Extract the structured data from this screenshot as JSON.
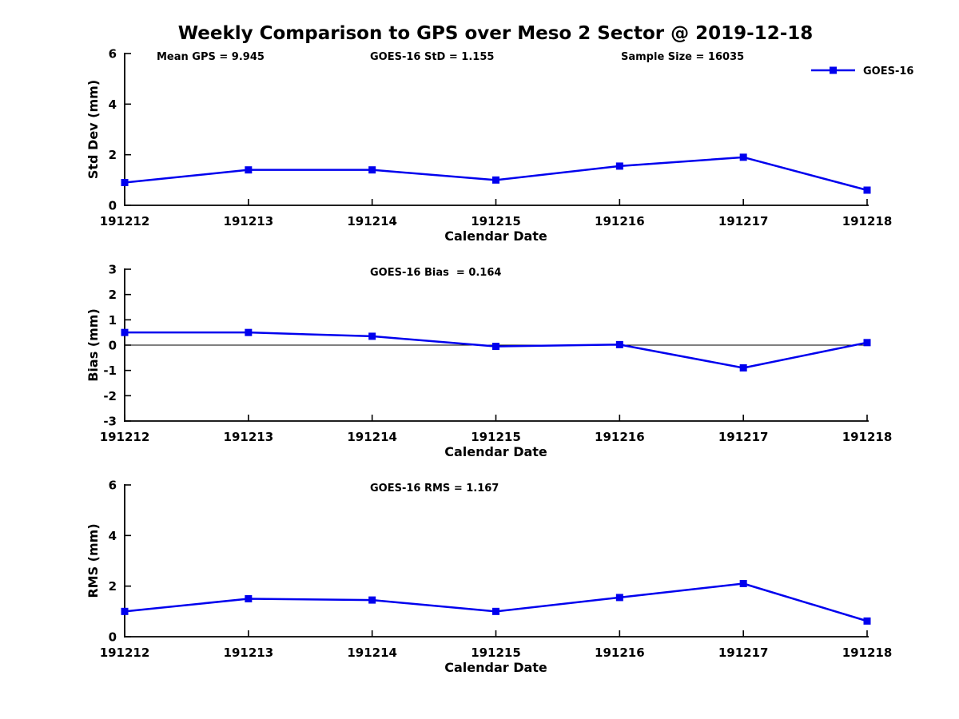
{
  "figure": {
    "title": "Weekly Comparison to GPS over Meso 2 Sector @ 2019-12-18",
    "line_color": "#0000ee",
    "axis_color": "#000000",
    "background": "#ffffff"
  },
  "chart_data": [
    {
      "type": "line",
      "id": "std-dev",
      "title": "",
      "categories": [
        "191212",
        "191213",
        "191214",
        "191215",
        "191216",
        "191217",
        "191218"
      ],
      "series": [
        {
          "name": "GOES-16",
          "color": "#0000ee",
          "marker": "square",
          "values": [
            0.9,
            1.4,
            1.4,
            1.0,
            1.55,
            1.9,
            0.6
          ]
        }
      ],
      "xlabel": "Calendar Date",
      "ylabel": "Std Dev (mm)",
      "ylim": [
        0,
        6
      ],
      "yticks": [
        0,
        2,
        4,
        6
      ],
      "grid": false,
      "zero_line": false,
      "annotations": [
        "Mean GPS = 9.945",
        "GOES-16 StD = 1.155",
        "Sample Size = 16035"
      ],
      "legend": {
        "visible": true,
        "label": "GOES-16",
        "position": "top-right"
      }
    },
    {
      "type": "line",
      "id": "bias",
      "title": "",
      "categories": [
        "191212",
        "191213",
        "191214",
        "191215",
        "191216",
        "191217",
        "191218"
      ],
      "series": [
        {
          "name": "GOES-16",
          "color": "#0000ee",
          "marker": "square",
          "values": [
            0.5,
            0.5,
            0.35,
            -0.05,
            0.02,
            -0.9,
            0.1
          ]
        }
      ],
      "xlabel": "Calendar Date",
      "ylabel": "Bias (mm)",
      "ylim": [
        -3,
        3
      ],
      "yticks": [
        -3,
        -2,
        -1,
        0,
        1,
        2,
        3
      ],
      "grid": false,
      "zero_line": true,
      "annotations": [
        "GOES-16 Bias  = 0.164"
      ],
      "legend": {
        "visible": false,
        "label": "",
        "position": ""
      }
    },
    {
      "type": "line",
      "id": "rms",
      "title": "",
      "categories": [
        "191212",
        "191213",
        "191214",
        "191215",
        "191216",
        "191217",
        "191218"
      ],
      "series": [
        {
          "name": "GOES-16",
          "color": "#0000ee",
          "marker": "square",
          "values": [
            1.0,
            1.5,
            1.45,
            1.0,
            1.55,
            2.1,
            0.62
          ]
        }
      ],
      "xlabel": "Calendar Date",
      "ylabel": "RMS (mm)",
      "ylim": [
        0,
        6
      ],
      "yticks": [
        0,
        2,
        4,
        6
      ],
      "grid": false,
      "zero_line": false,
      "annotations": [
        "GOES-16 RMS = 1.167"
      ],
      "legend": {
        "visible": false,
        "label": "",
        "position": ""
      }
    }
  ]
}
